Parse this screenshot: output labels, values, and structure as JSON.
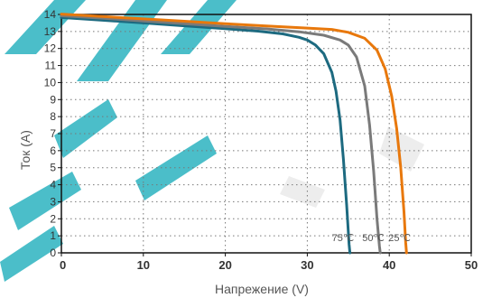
{
  "chart_data": {
    "type": "line",
    "xlabel": "Напрежение (V)",
    "ylabel": "Ток (A)",
    "xlim": [
      0,
      50
    ],
    "ylim": [
      0,
      14
    ],
    "x_ticks": [
      "0",
      "10",
      "20",
      "30",
      "40",
      "50"
    ],
    "y_ticks": [
      "0",
      "1",
      "2",
      "3",
      "4",
      "5",
      "6",
      "7",
      "8",
      "9",
      "10",
      "11",
      "12",
      "13",
      "14"
    ],
    "grid": true,
    "series": [
      {
        "name": "75℃",
        "color": "#1d6a80",
        "points": [
          [
            0,
            13.82
          ],
          [
            5,
            13.66
          ],
          [
            10,
            13.5
          ],
          [
            15,
            13.33
          ],
          [
            20,
            13.16
          ],
          [
            24,
            13.02
          ],
          [
            27,
            12.86
          ],
          [
            29,
            12.66
          ],
          [
            30,
            12.5
          ],
          [
            31,
            12.2
          ],
          [
            32,
            11.7
          ],
          [
            33,
            10.6
          ],
          [
            33.5,
            9.5
          ],
          [
            34,
            7.8
          ],
          [
            34.4,
            5.5
          ],
          [
            34.8,
            2.8
          ],
          [
            35.1,
            0.5
          ],
          [
            35.2,
            0
          ]
        ]
      },
      {
        "name": "50℃",
        "color": "#7a7a7a",
        "points": [
          [
            0,
            13.92
          ],
          [
            5,
            13.78
          ],
          [
            10,
            13.62
          ],
          [
            15,
            13.46
          ],
          [
            20,
            13.3
          ],
          [
            25,
            13.15
          ],
          [
            29,
            12.98
          ],
          [
            32,
            12.78
          ],
          [
            34,
            12.5
          ],
          [
            35,
            12.2
          ],
          [
            36,
            11.5
          ],
          [
            37,
            9.8
          ],
          [
            37.6,
            7.5
          ],
          [
            38.1,
            4.8
          ],
          [
            38.5,
            2.0
          ],
          [
            38.8,
            0.4
          ],
          [
            38.9,
            0
          ]
        ]
      },
      {
        "name": "25℃",
        "color": "#e8780c",
        "points": [
          [
            0,
            14.02
          ],
          [
            5,
            13.88
          ],
          [
            10,
            13.74
          ],
          [
            15,
            13.6
          ],
          [
            20,
            13.46
          ],
          [
            25,
            13.32
          ],
          [
            30,
            13.2
          ],
          [
            33,
            13.12
          ],
          [
            35,
            12.95
          ],
          [
            37,
            12.6
          ],
          [
            38.5,
            11.9
          ],
          [
            39.5,
            10.8
          ],
          [
            40.3,
            9.2
          ],
          [
            40.9,
            7.3
          ],
          [
            41.4,
            5.0
          ],
          [
            41.8,
            2.4
          ],
          [
            42,
            0.6
          ],
          [
            42.1,
            0
          ]
        ]
      }
    ],
    "annotations": [
      "75℃",
      "50℃",
      "25℃"
    ]
  }
}
